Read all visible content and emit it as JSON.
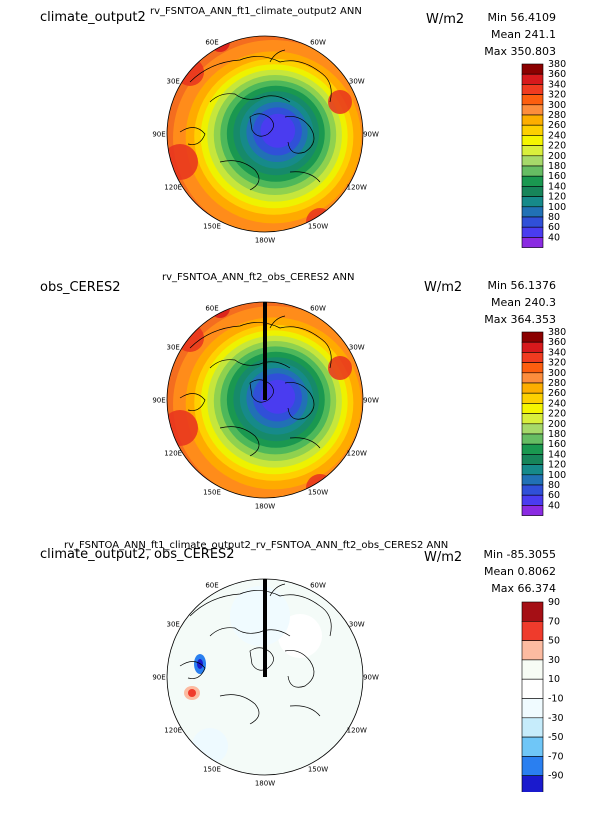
{
  "panels": [
    {
      "left_title": "climate_output2",
      "center_title": "rv_FSNTOA_ANN_ft1_climate_output2  ANN",
      "units": "W/m2",
      "stats": [
        "Min 56.4109",
        "Mean 241.1",
        "Max 350.803"
      ],
      "lon_labels": [
        "30E",
        "30W",
        "60E",
        "60W",
        "90E",
        "90W",
        "120E",
        "120W",
        "150E",
        "150W",
        "180W"
      ],
      "colorbar_labels": [
        "380",
        "360",
        "340",
        "320",
        "300",
        "280",
        "260",
        "240",
        "220",
        "200",
        "180",
        "160",
        "140",
        "120",
        "100",
        "80",
        "60",
        "40"
      ]
    },
    {
      "left_title": "obs_CERES2",
      "center_title": "rv_FSNTOA_ANN_ft2_obs_CERES2  ANN",
      "units": "W/m2",
      "stats": [
        "Min 56.1376",
        "Mean 240.3",
        "Max 364.353"
      ],
      "lon_labels": [
        "30E",
        "30W",
        "60E",
        "60W",
        "90E",
        "90W",
        "120E",
        "120W",
        "150E",
        "150W",
        "180W"
      ],
      "colorbar_labels": [
        "380",
        "360",
        "340",
        "320",
        "300",
        "280",
        "260",
        "240",
        "220",
        "200",
        "180",
        "160",
        "140",
        "120",
        "100",
        "80",
        "60",
        "40"
      ]
    },
    {
      "left_title": "climate_output2, obs_CERES2",
      "center_title": "rv_FSNTOA_ANN_ft1_climate_output2_rv_FSNTOA_ANN_ft2_obs_CERES2  ANN",
      "units": "W/m2",
      "stats": [
        "Min -85.3055",
        "Mean 0.8062",
        "Max 66.374"
      ],
      "lon_labels": [
        "30E",
        "30W",
        "60E",
        "60W",
        "90E",
        "90W",
        "120E",
        "120W",
        "150E",
        "150W",
        "180W"
      ],
      "colorbar_labels": [
        "90",
        "70",
        "50",
        "30",
        "10",
        "-10",
        "-30",
        "-50",
        "-70",
        "-90"
      ]
    }
  ],
  "colors": {
    "abs_scale": [
      "#8b0000",
      "#d7191c",
      "#f03b20",
      "#fd5e0f",
      "#fd8d3c",
      "#fdae00",
      "#fdd000",
      "#f5f500",
      "#d9ef3c",
      "#a6d96a",
      "#66bd63",
      "#1a9850",
      "#17855a",
      "#168a8a",
      "#2171b5",
      "#3050d8",
      "#4a3cf0",
      "#8a2be2"
    ],
    "diff_scale": [
      "#a50f15",
      "#ef3b2c",
      "#fcbba1",
      "#f7fcf5",
      "#ffffff",
      "#f0fbff",
      "#c6ecfb",
      "#6fc6f7",
      "#2a7ff0",
      "#1a1acd"
    ]
  },
  "chart_data": [
    {
      "type": "heatmap",
      "title": "rv_FSNTOA_ANN_ft1_climate_output2  ANN",
      "projection": "north polar stereographic",
      "units": "W/m2",
      "levels": [
        40,
        60,
        80,
        100,
        120,
        140,
        160,
        180,
        200,
        220,
        240,
        260,
        280,
        300,
        320,
        340,
        360,
        380
      ],
      "min": 56.4109,
      "mean": 241.1,
      "max": 350.803
    },
    {
      "type": "heatmap",
      "title": "rv_FSNTOA_ANN_ft2_obs_CERES2  ANN",
      "projection": "north polar stereographic",
      "units": "W/m2",
      "levels": [
        40,
        60,
        80,
        100,
        120,
        140,
        160,
        180,
        200,
        220,
        240,
        260,
        280,
        300,
        320,
        340,
        360,
        380
      ],
      "min": 56.1376,
      "mean": 240.3,
      "max": 364.353
    },
    {
      "type": "heatmap",
      "title": "rv_FSNTOA_ANN_ft1_climate_output2_rv_FSNTOA_ANN_ft2_obs_CERES2  ANN",
      "projection": "north polar stereographic",
      "units": "W/m2",
      "levels": [
        -90,
        -70,
        -50,
        -30,
        -10,
        10,
        30,
        50,
        70,
        90
      ],
      "min": -85.3055,
      "mean": 0.8062,
      "max": 66.374
    }
  ]
}
